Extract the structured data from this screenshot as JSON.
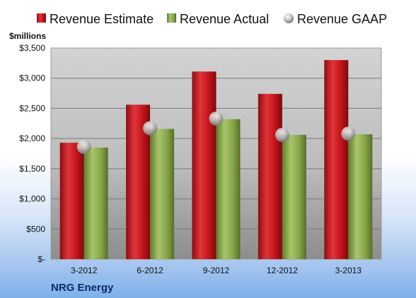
{
  "chart_data": {
    "type": "bar",
    "company": "NRG Energy",
    "ylabel": "$millions",
    "categories": [
      "3-2012",
      "6-2012",
      "9-2012",
      "12-2012",
      "3-2013"
    ],
    "series": [
      {
        "name": "Revenue Estimate",
        "kind": "bar",
        "color": "#c8141c",
        "values": [
          1930,
          2560,
          3110,
          2740,
          3300
        ]
      },
      {
        "name": "Revenue Actual",
        "kind": "bar",
        "color": "#8aab4c",
        "values": [
          1850,
          2160,
          2320,
          2060,
          2070
        ]
      },
      {
        "name": "Revenue GAAP",
        "kind": "marker",
        "color": "#b8b8b8",
        "values": [
          1860,
          2170,
          2330,
          2060,
          2080
        ]
      }
    ],
    "ylim": [
      0,
      3500
    ],
    "yticks": [
      0,
      500,
      1000,
      1500,
      2000,
      2500,
      3000,
      3500
    ],
    "ytick_labels": [
      "$-",
      "$500",
      "$1,000",
      "$1,500",
      "$2,000",
      "$2,500",
      "$3,000",
      "$3,500"
    ],
    "grid": true,
    "legend_position": "top"
  }
}
